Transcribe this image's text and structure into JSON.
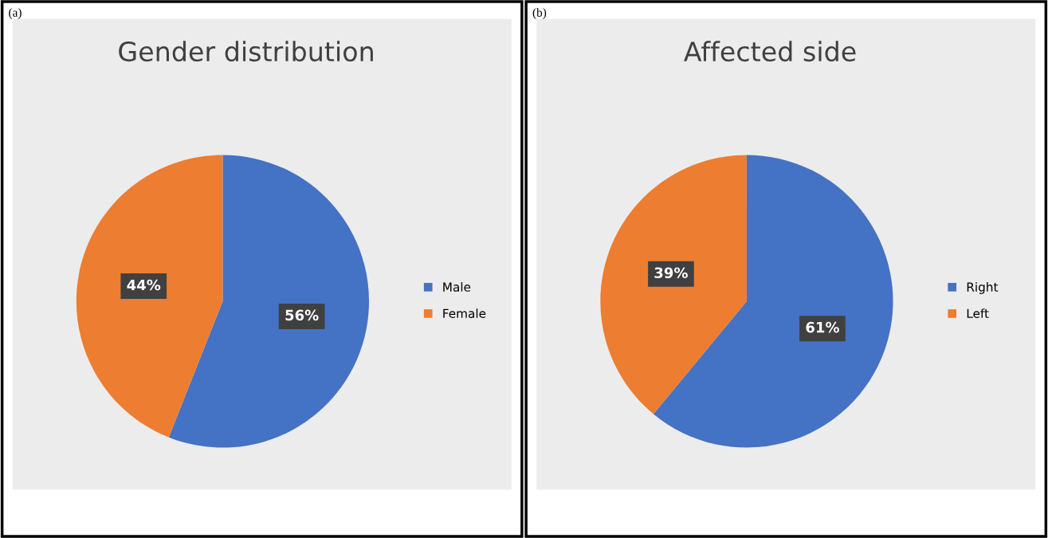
{
  "chart_data": [
    {
      "type": "pie",
      "title": "Gender distribution",
      "annotations": [
        "(a)"
      ],
      "categories": [
        "Male",
        "Female"
      ],
      "values": [
        56,
        44
      ],
      "colors": [
        "#4472c4",
        "#ed7d31"
      ],
      "value_labels": [
        "56%",
        "44%"
      ],
      "legend": "right"
    },
    {
      "type": "pie",
      "title": "Affected side",
      "annotations": [
        "(b)"
      ],
      "categories": [
        "Right",
        "Left"
      ],
      "values": [
        61,
        39
      ],
      "colors": [
        "#4472c4",
        "#ed7d31"
      ],
      "value_labels": [
        "61%",
        "39%"
      ],
      "legend": "right"
    }
  ]
}
